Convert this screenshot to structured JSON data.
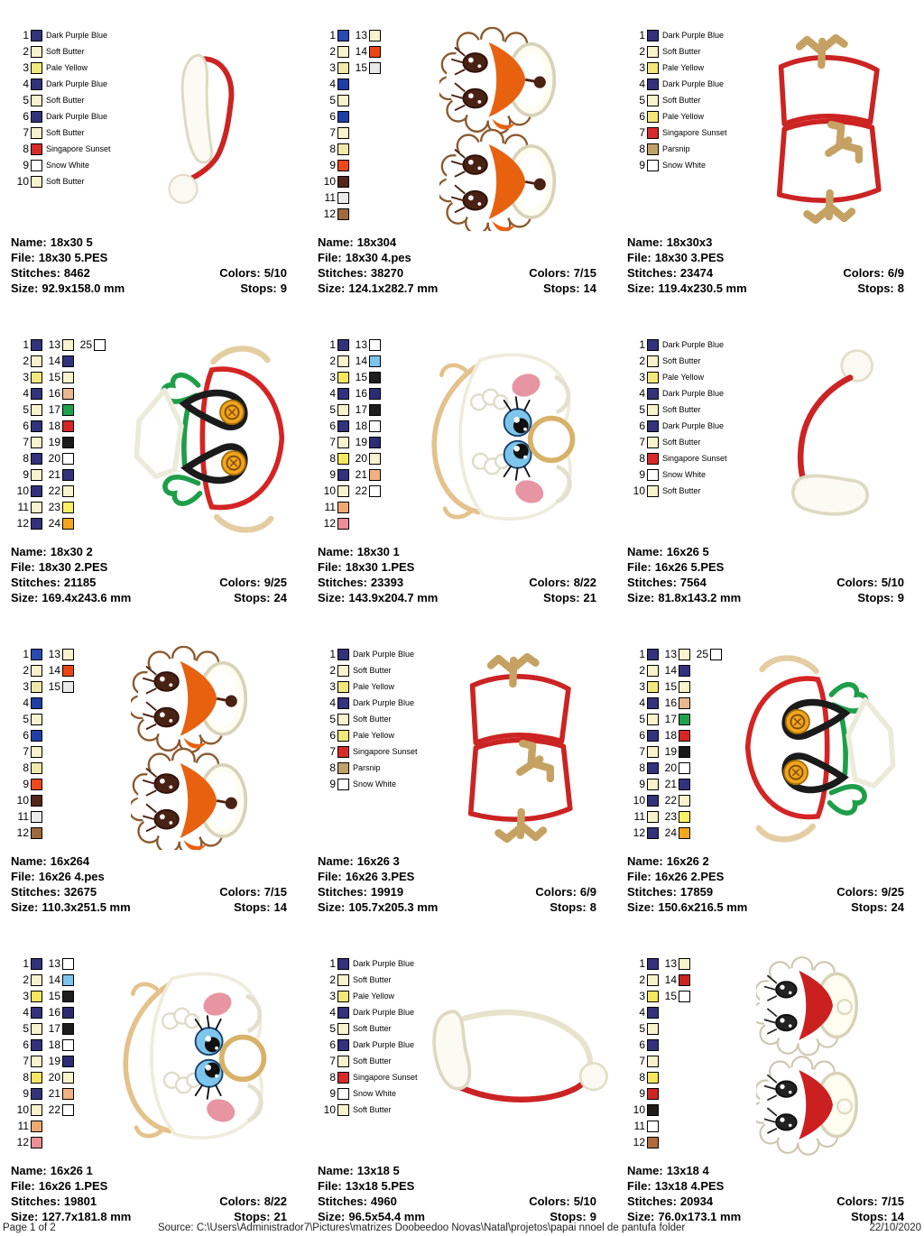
{
  "labels": {
    "name": "Name:",
    "file": "File:",
    "stitches": "Stitches:",
    "size": "Size:",
    "colors": "Colors:",
    "stops": "Stops:"
  },
  "footer": {
    "page": "Page 1 of 2",
    "source": "Source: C:\\Users\\Administrador7\\Pictures\\matrizes Doobeedoo Novas\\Natal\\projetos\\papai nnoel de pantufa folder",
    "date": "22/10/2020"
  },
  "palettes": {
    "A": [
      [
        {
          "n": 1,
          "c": "#32327d",
          "t": "Dark Purple Blue"
        }
      ],
      [
        {
          "n": 2,
          "c": "#f8f3cc",
          "t": "Soft Butter"
        }
      ],
      [
        {
          "n": 3,
          "c": "#f2e87c",
          "t": "Pale Yellow"
        }
      ],
      [
        {
          "n": 4,
          "c": "#32327d",
          "t": "Dark Purple Blue"
        }
      ],
      [
        {
          "n": 5,
          "c": "#f8f3cc",
          "t": "Soft Butter"
        }
      ],
      [
        {
          "n": 6,
          "c": "#32327d",
          "t": "Dark Purple Blue"
        }
      ],
      [
        {
          "n": 7,
          "c": "#f8f3cc",
          "t": "Soft Butter"
        }
      ],
      [
        {
          "n": 8,
          "c": "#d82a2a",
          "t": "Singapore Sunset"
        }
      ],
      [
        {
          "n": 9,
          "c": "#ffffff",
          "t": "Snow White"
        }
      ],
      [
        {
          "n": 10,
          "c": "#f8f3cc",
          "t": "Soft Butter"
        }
      ]
    ],
    "B": [
      [
        {
          "n": 1,
          "c": "#32327d",
          "t": "Dark Purple Blue"
        }
      ],
      [
        {
          "n": 2,
          "c": "#f8f3cc",
          "t": "Soft Butter"
        }
      ],
      [
        {
          "n": 3,
          "c": "#f2e87c",
          "t": "Pale Yellow"
        }
      ],
      [
        {
          "n": 4,
          "c": "#32327d",
          "t": "Dark Purple Blue"
        }
      ],
      [
        {
          "n": 5,
          "c": "#f8f3cc",
          "t": "Soft Butter"
        }
      ],
      [
        {
          "n": 6,
          "c": "#f2e87c",
          "t": "Pale Yellow"
        }
      ],
      [
        {
          "n": 7,
          "c": "#d82a2a",
          "t": "Singapore Sunset"
        }
      ],
      [
        {
          "n": 8,
          "c": "#c2a168",
          "t": "Parsnip"
        }
      ],
      [
        {
          "n": 9,
          "c": "#ffffff",
          "t": "Snow White"
        }
      ]
    ],
    "C": [
      [
        {
          "n": 1,
          "c": "#2a4ab4"
        },
        {
          "n": 13,
          "c": "#f8f3cc"
        }
      ],
      [
        {
          "n": 2,
          "c": "#f8f3cc"
        },
        {
          "n": 14,
          "c": "#ee4412"
        }
      ],
      [
        {
          "n": 3,
          "c": "#f0e8a8"
        },
        {
          "n": 15,
          "c": "#e9e9e9"
        }
      ],
      [
        {
          "n": 4,
          "c": "#1e3fa8"
        }
      ],
      [
        {
          "n": 5,
          "c": "#f8f3cc"
        }
      ],
      [
        {
          "n": 6,
          "c": "#1e3fa8"
        }
      ],
      [
        {
          "n": 7,
          "c": "#f8f3cc"
        }
      ],
      [
        {
          "n": 8,
          "c": "#f0e8a8"
        }
      ],
      [
        {
          "n": 9,
          "c": "#f04818"
        }
      ],
      [
        {
          "n": 10,
          "c": "#55261b"
        }
      ],
      [
        {
          "n": 11,
          "c": "#ececec"
        }
      ],
      [
        {
          "n": 12,
          "c": "#a06a3e"
        }
      ]
    ],
    "D": [
      [
        {
          "n": 1,
          "c": "#32327d"
        },
        {
          "n": 13,
          "c": "#f8f3cc"
        },
        {
          "n": 25,
          "c": "#ffffff"
        }
      ],
      [
        {
          "n": 2,
          "c": "#f8f3cc"
        },
        {
          "n": 14,
          "c": "#32327d"
        }
      ],
      [
        {
          "n": 3,
          "c": "#f2e87c"
        },
        {
          "n": 15,
          "c": "#f8f3cc"
        }
      ],
      [
        {
          "n": 4,
          "c": "#32327d"
        },
        {
          "n": 16,
          "c": "#eab88e"
        }
      ],
      [
        {
          "n": 5,
          "c": "#f8f3cc"
        },
        {
          "n": 17,
          "c": "#1fa24c"
        }
      ],
      [
        {
          "n": 6,
          "c": "#32327d"
        },
        {
          "n": 18,
          "c": "#d82424"
        }
      ],
      [
        {
          "n": 7,
          "c": "#f8f3cc"
        },
        {
          "n": 19,
          "c": "#1a1a1a"
        }
      ],
      [
        {
          "n": 8,
          "c": "#32327d"
        },
        {
          "n": 20,
          "c": "#ffffff"
        }
      ],
      [
        {
          "n": 9,
          "c": "#f8f3cc"
        },
        {
          "n": 21,
          "c": "#32327d"
        }
      ],
      [
        {
          "n": 10,
          "c": "#32327d"
        },
        {
          "n": 22,
          "c": "#f8f3cc"
        }
      ],
      [
        {
          "n": 11,
          "c": "#f8f3cc"
        },
        {
          "n": 23,
          "c": "#f8ef62"
        }
      ],
      [
        {
          "n": 12,
          "c": "#32327d"
        },
        {
          "n": 24,
          "c": "#f4a71b"
        }
      ]
    ],
    "E": [
      [
        {
          "n": 1,
          "c": "#32327d"
        },
        {
          "n": 13,
          "c": "#ffffff"
        }
      ],
      [
        {
          "n": 2,
          "c": "#f8f3cc"
        },
        {
          "n": 14,
          "c": "#7cc4ee"
        }
      ],
      [
        {
          "n": 3,
          "c": "#f5e860"
        },
        {
          "n": 15,
          "c": "#1e1e1e"
        }
      ],
      [
        {
          "n": 4,
          "c": "#32327d"
        },
        {
          "n": 16,
          "c": "#2c2c74"
        }
      ],
      [
        {
          "n": 5,
          "c": "#f8f3cc"
        },
        {
          "n": 17,
          "c": "#1e1e1e"
        }
      ],
      [
        {
          "n": 6,
          "c": "#32327d"
        },
        {
          "n": 18,
          "c": "#ffffff"
        }
      ],
      [
        {
          "n": 7,
          "c": "#f8f3cc"
        },
        {
          "n": 19,
          "c": "#2c2c74"
        }
      ],
      [
        {
          "n": 8,
          "c": "#f5e860"
        },
        {
          "n": 20,
          "c": "#f8f3cc"
        }
      ],
      [
        {
          "n": 9,
          "c": "#32327d"
        },
        {
          "n": 21,
          "c": "#f2b183"
        }
      ],
      [
        {
          "n": 10,
          "c": "#f8f3cc"
        },
        {
          "n": 22,
          "c": "#ffffff"
        }
      ],
      [
        {
          "n": 11,
          "c": "#f0aa70"
        }
      ],
      [
        {
          "n": 12,
          "c": "#ee8e96"
        }
      ]
    ],
    "F": [
      [
        {
          "n": 1,
          "c": "#32327d"
        },
        {
          "n": 13,
          "c": "#f8f3cc"
        }
      ],
      [
        {
          "n": 2,
          "c": "#f8f3cc"
        },
        {
          "n": 14,
          "c": "#cc2222"
        }
      ],
      [
        {
          "n": 3,
          "c": "#f5e860"
        },
        {
          "n": 15,
          "c": "#ffffff"
        }
      ],
      [
        {
          "n": 4,
          "c": "#32327d"
        }
      ],
      [
        {
          "n": 5,
          "c": "#f8f3cc"
        }
      ],
      [
        {
          "n": 6,
          "c": "#32327d"
        }
      ],
      [
        {
          "n": 7,
          "c": "#f8f3cc"
        }
      ],
      [
        {
          "n": 8,
          "c": "#f5e860"
        }
      ],
      [
        {
          "n": 9,
          "c": "#d02424"
        }
      ],
      [
        {
          "n": 10,
          "c": "#201c18"
        }
      ],
      [
        {
          "n": 11,
          "c": "#ffffff"
        }
      ],
      [
        {
          "n": 12,
          "c": "#b06a3a"
        }
      ]
    ]
  },
  "designs": [
    {
      "name": "18x30 5",
      "file": "18x30 5.PES",
      "stitches": "8462",
      "colors": "5/10",
      "size": "92.9x158.0 mm",
      "stops": "9",
      "palette": "A",
      "thumb": "hat-v",
      "icon": "santa-hat-vertical-design"
    },
    {
      "name": "18x304",
      "file": "18x30 4.pes",
      "stitches": "38270",
      "colors": "7/15",
      "size": "124.1x282.7 mm",
      "stops": "14",
      "palette": "C",
      "thumb": "owl-faces",
      "icon": "gnome-faces-design"
    },
    {
      "name": "18x30x3",
      "file": "18x30 3.PES",
      "stitches": "23474",
      "colors": "6/9",
      "size": "119.4x230.5 mm",
      "stops": "8",
      "palette": "B",
      "thumb": "antlers",
      "icon": "reindeer-antlers-design"
    },
    {
      "name": "18x30 2",
      "file": "18x30 2.PES",
      "stitches": "21185",
      "colors": "9/25",
      "size": "169.4x243.6 mm",
      "stops": "24",
      "palette": "D",
      "thumb": "suspenders",
      "icon": "santa-suspenders-design"
    },
    {
      "name": "18x30 1",
      "file": "18x30 1.PES",
      "stitches": "23393",
      "colors": "8/22",
      "size": "143.9x204.7 mm",
      "stops": "21",
      "palette": "E",
      "thumb": "cute-face",
      "icon": "claus-face-design"
    },
    {
      "name": "16x26 5",
      "file": "16x26 5.PES",
      "stitches": "7564",
      "colors": "5/10",
      "size": "81.8x143.2 mm",
      "stops": "9",
      "palette": "A",
      "thumb": "hat-v2",
      "icon": "santa-hat-flipped-design"
    },
    {
      "name": "16x264",
      "file": "16x26 4.pes",
      "stitches": "32675",
      "colors": "7/15",
      "size": "110.3x251.5 mm",
      "stops": "14",
      "palette": "C",
      "thumb": "owl-faces",
      "icon": "gnome-faces-design"
    },
    {
      "name": "16x26 3",
      "file": "16x26 3.PES",
      "stitches": "19919",
      "colors": "6/9",
      "size": "105.7x205.3 mm",
      "stops": "8",
      "palette": "B",
      "thumb": "antlers",
      "icon": "reindeer-antlers-design"
    },
    {
      "name": "16x26 2",
      "file": "16x26 2.PES",
      "stitches": "17859",
      "colors": "9/25",
      "size": "150.6x216.5 mm",
      "stops": "24",
      "palette": "D",
      "thumb": "suspenders",
      "mirror": true,
      "icon": "santa-suspenders-design"
    },
    {
      "name": "16x26 1",
      "file": "16x26 1.PES",
      "stitches": "19801",
      "colors": "8/22",
      "size": "127.7x181.8 mm",
      "stops": "21",
      "palette": "E",
      "thumb": "cute-face",
      "icon": "claus-face-design"
    },
    {
      "name": "13x18 5",
      "file": "13x18 5.PES",
      "stitches": "4960",
      "colors": "5/10",
      "size": "96.5x54.4 mm",
      "stops": "9",
      "palette": "A",
      "thumb": "hat-h",
      "icon": "santa-hat-horizontal-design"
    },
    {
      "name": "13x18 4",
      "file": "13x18 4.PES",
      "stitches": "20934",
      "colors": "7/15",
      "size": "76.0x173.1 mm",
      "stops": "14",
      "palette": "F",
      "thumb": "red-faces",
      "icon": "gnome-faces-red-design"
    }
  ]
}
